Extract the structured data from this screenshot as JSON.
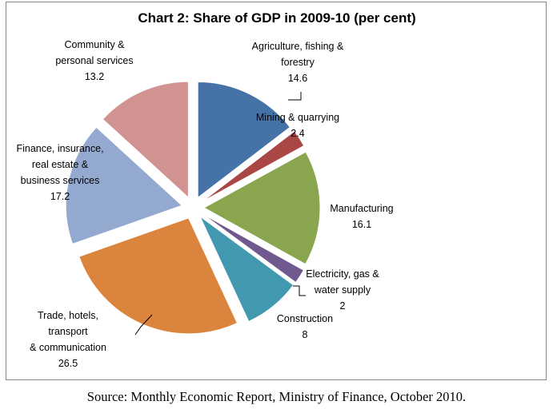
{
  "chart_data": {
    "type": "pie",
    "title": "Chart 2: Share of GDP in 2009-10 (per cent)",
    "exploded": true,
    "slices": [
      {
        "label_lines": [
          "Agriculture, fishing &",
          "forestry"
        ],
        "value": 14.6,
        "value_label": "14.6",
        "color": "#4572A7"
      },
      {
        "label_lines": [
          "Mining & quarrying"
        ],
        "value": 2.4,
        "value_label": "2.4",
        "color": "#AA4643"
      },
      {
        "label_lines": [
          "Manufacturing"
        ],
        "value": 16.1,
        "value_label": "16.1",
        "color": "#89A54E"
      },
      {
        "label_lines": [
          "Electricity, gas &",
          "water supply"
        ],
        "value": 2,
        "value_label": "2",
        "color": "#71588F"
      },
      {
        "label_lines": [
          "Construction"
        ],
        "value": 8,
        "value_label": "8",
        "color": "#4198AF"
      },
      {
        "label_lines": [
          "Trade, hotels,",
          "transport",
          "& communication"
        ],
        "value": 26.5,
        "value_label": "26.5",
        "color": "#DB843D"
      },
      {
        "label_lines": [
          "Finance, insurance,",
          "real estate &",
          "business services"
        ],
        "value": 17.2,
        "value_label": "17.2",
        "color": "#93A9CF"
      },
      {
        "label_lines": [
          "Community &",
          "personal services"
        ],
        "value": 13.2,
        "value_label": "13.2",
        "color": "#D19392"
      }
    ]
  },
  "source": "Source: Monthly Economic Report, Ministry of Finance, October 2010."
}
